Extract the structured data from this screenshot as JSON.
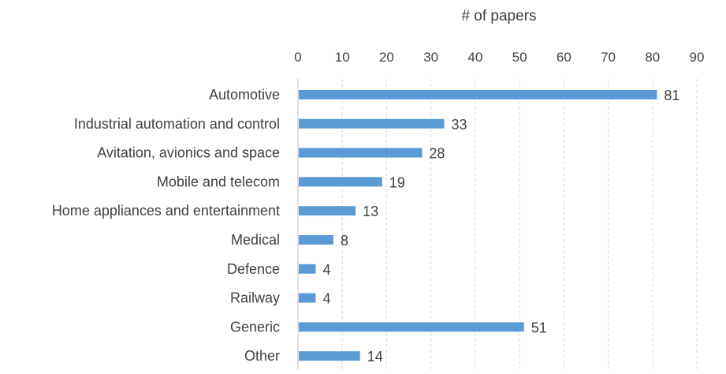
{
  "chart_data": {
    "type": "bar",
    "orientation": "horizontal",
    "title": "",
    "xlabel": "# of papers",
    "ylabel": "",
    "xlim": [
      0,
      90
    ],
    "x_ticks": [
      0,
      10,
      20,
      30,
      40,
      50,
      60,
      70,
      80,
      90
    ],
    "x_axis_position": "top",
    "grid": true,
    "legend": "none",
    "bar_color": "#5b9bd5",
    "categories": [
      "Automotive",
      "Industrial automation and control",
      "Avitation, avionics and space",
      "Mobile and telecom",
      "Home appliances and entertainment",
      "Medical",
      "Defence",
      "Railway",
      "Generic",
      "Other"
    ],
    "values": [
      81,
      33,
      28,
      19,
      13,
      8,
      4,
      4,
      51,
      14
    ],
    "data_labels": true
  }
}
